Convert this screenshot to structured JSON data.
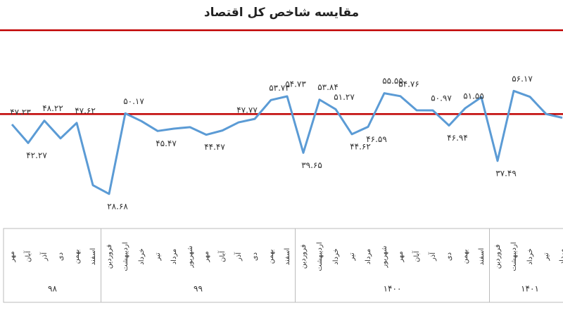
{
  "chart_data": {
    "type": "line",
    "title": "مقایسه شاخص کل اقتصاد",
    "groups": [
      {
        "label": "۹۸",
        "categories": [
          "مهر",
          "آبان",
          "آذر",
          "دی",
          "بهمن",
          "اسفند"
        ]
      },
      {
        "label": "۹۹",
        "categories": [
          "فروردین",
          "اردیبهشت",
          "خرداد",
          "تیر",
          "مرداد",
          "شهریور",
          "مهر",
          "آبان",
          "آذر",
          "دی",
          "بهمن",
          "اسفند"
        ]
      },
      {
        "label": "۱۴۰۰",
        "categories": [
          "فروردین",
          "اردیبهشت",
          "خرداد",
          "تیر",
          "مرداد",
          "شهریور",
          "مهر",
          "آبان",
          "آذر",
          "دی",
          "بهمن",
          "اسفند"
        ]
      },
      {
        "label": "۱۴۰۱",
        "categories": [
          "فروردین",
          "اردیبهشت",
          "خرداد",
          "تیر",
          "مرداد"
        ]
      }
    ],
    "values": [
      47.23,
      42.27,
      48.22,
      43.5,
      47.62,
      31,
      28.68,
      50.17,
      48.1,
      45.47,
      46.1,
      46.5,
      44.47,
      45.6,
      47.77,
      48.7,
      53.73,
      54.73,
      39.65,
      53.84,
      51.27,
      44.62,
      46.59,
      55.55,
      54.76,
      51,
      50.97,
      46.94,
      51.55,
      54.5,
      37.49,
      56.17,
      54.6,
      50,
      49
    ],
    "value_labels": [
      "۴۷.۲۳",
      "۴۲.۲۷",
      "۴۸.۲۲",
      null,
      "۴۷.۶۲",
      null,
      "۲۸.۶۸",
      "۵۰.۱۷",
      null,
      "۴۵.۴۷",
      null,
      null,
      "۴۴.۴۷",
      null,
      "۴۷.۷۷",
      null,
      "۵۳.۷۳",
      "۵۴.۷۳",
      "۳۹.۶۵",
      "۵۳.۸۴",
      "۵۱.۲۷",
      "۴۴.۶۲",
      "۴۶.۵۹",
      "۵۵.۵۵",
      "۵۴.۷۶",
      null,
      "۵۰.۹۷",
      "۴۶.۹۴",
      "۵۱.۵۵",
      null,
      "۳۷.۴۹",
      "۵۶.۱۷",
      null,
      null,
      null
    ],
    "color": "#5b9bd5",
    "reference_value": 50,
    "reference_color": "#c00000",
    "ylim": [
      20,
      72
    ]
  }
}
